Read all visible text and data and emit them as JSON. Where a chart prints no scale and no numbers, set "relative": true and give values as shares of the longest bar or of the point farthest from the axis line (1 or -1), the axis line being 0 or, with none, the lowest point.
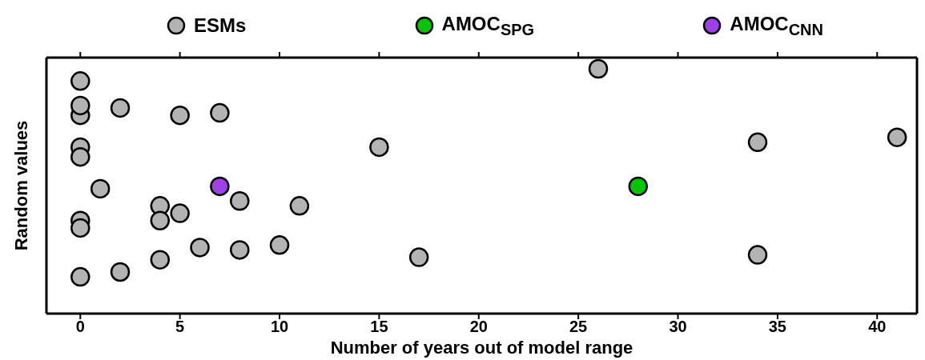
{
  "chart_data": {
    "type": "scatter",
    "xlabel": "Number of years out of model range",
    "ylabel": "Random values",
    "relative": true,
    "xlim": [
      -1.7,
      42
    ],
    "xticks": [
      0,
      5,
      10,
      15,
      20,
      25,
      30,
      35,
      40
    ],
    "marker": "circle",
    "legend": "top",
    "series": [
      {
        "name": "ESMs",
        "color": "#b3b3b3",
        "x": [
          0,
          0,
          0,
          0,
          0,
          0,
          0,
          0,
          2,
          2,
          5,
          7,
          1,
          4,
          4,
          4,
          5,
          8,
          8,
          11,
          6,
          10,
          15,
          17,
          26,
          34,
          34,
          41
        ],
        "values": [
          0.95,
          0.81,
          0.85,
          0.68,
          0.64,
          0.38,
          0.35,
          0.15,
          0.84,
          0.17,
          0.81,
          0.82,
          0.51,
          0.44,
          0.38,
          0.22,
          0.41,
          0.46,
          0.26,
          0.44,
          0.27,
          0.28,
          0.68,
          0.23,
          1,
          0.7,
          0.24,
          0.72
        ]
      },
      {
        "name": "AMOC$_{SPG}$",
        "color": "#00c800",
        "x": [
          28
        ],
        "values": [
          0.52
        ]
      },
      {
        "name": "AMOC$_{CNN}$",
        "color": "#a040e8",
        "x": [
          7
        ],
        "values": [
          0.52
        ]
      }
    ]
  }
}
